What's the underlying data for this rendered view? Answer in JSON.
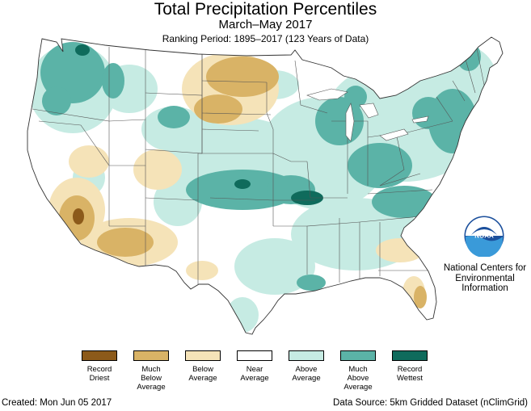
{
  "header": {
    "title": "Total Precipitation Percentiles",
    "subtitle": "March–May 2017",
    "ranking_period": "Ranking Period: 1895–2017 (123 Years of Data)"
  },
  "branding": {
    "logo_text": "NOAA",
    "organization": "National Centers for\nEnvironmental\nInformation"
  },
  "legend": {
    "items": [
      {
        "label": "Record\nDriest",
        "color": "#8c5a1a"
      },
      {
        "label": "Much\nBelow\nAverage",
        "color": "#d9b366"
      },
      {
        "label": "Below\nAverage",
        "color": "#f5e3b8"
      },
      {
        "label": "Near\nAverage",
        "color": "#ffffff"
      },
      {
        "label": "Above\nAverage",
        "color": "#c6ebe3"
      },
      {
        "label": "Much\nAbove\nAverage",
        "color": "#5bb3a7"
      },
      {
        "label": "Record\nWettest",
        "color": "#0f6b5c"
      }
    ]
  },
  "footer": {
    "created": "Created: Mon Jun 05 2017",
    "source": "Data Source: 5km Gridded Dataset (nClimGrid)"
  }
}
